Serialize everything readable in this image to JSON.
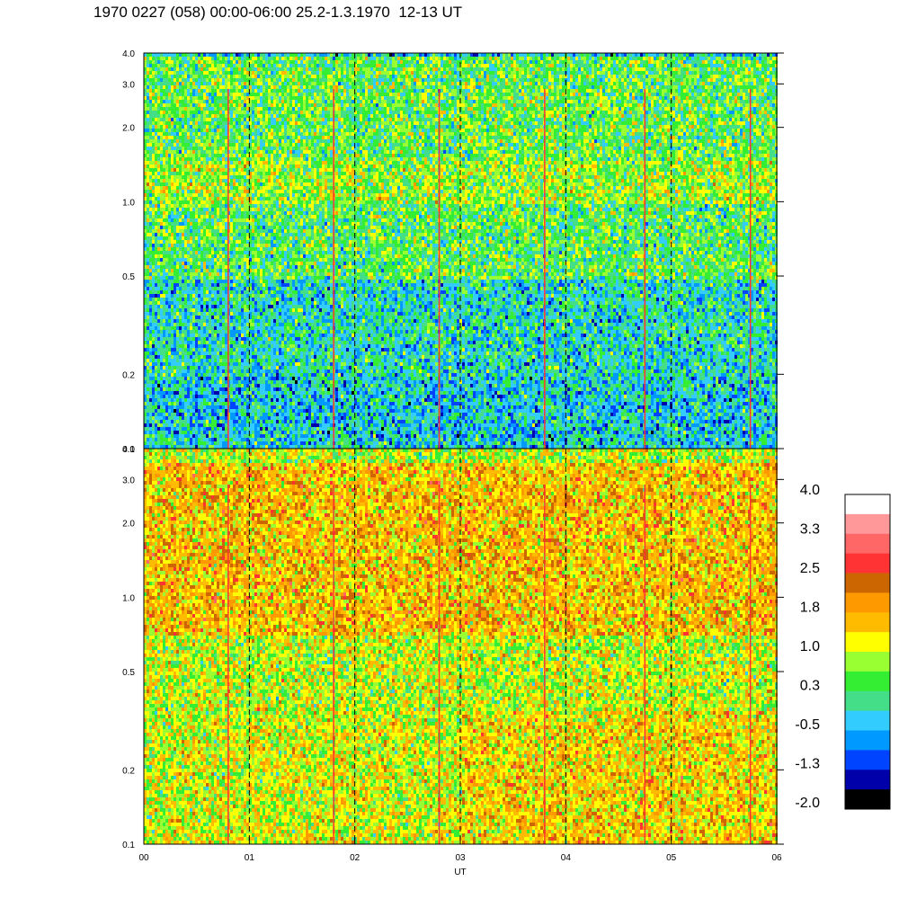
{
  "title": "1970 0227 (058) 00:00-06:00 25.2-1.3.1970  12-13 UT",
  "chart_data": {
    "type": "heatmap",
    "xlabel": "UT",
    "x_ticks": [
      "00",
      "01",
      "02",
      "03",
      "04",
      "05",
      "06"
    ],
    "xlim": [
      0,
      6
    ],
    "dashed_lines_at_hours": [
      1,
      2,
      3,
      4,
      5
    ],
    "y_scale": "log",
    "panels": [
      {
        "name": "upper",
        "ylim": [
          0.1,
          4.0
        ],
        "y_ticks": [
          {
            "value": 0.1,
            "label": "0.1"
          },
          {
            "value": 0.2,
            "label": "0.2"
          },
          {
            "value": 0.5,
            "label": "0.5"
          },
          {
            "value": 1.0,
            "label": "1.0"
          },
          {
            "value": 2.0,
            "label": "2.0"
          },
          {
            "value": 3.0,
            "label": "3.0"
          },
          {
            "value": 4.0,
            "label": "4.0"
          }
        ],
        "dominant_levels_by_frequency": [
          {
            "range": [
              0.1,
              0.2
            ],
            "level": -0.3
          },
          {
            "range": [
              0.2,
              0.5
            ],
            "level": -0.1
          },
          {
            "range": [
              0.5,
              1.0
            ],
            "level": 0.4
          },
          {
            "range": [
              1.0,
              1.5
            ],
            "level": 0.8
          },
          {
            "range": [
              1.5,
              4.0
            ],
            "level": 0.5
          }
        ]
      },
      {
        "name": "lower",
        "ylim": [
          0.1,
          4.0
        ],
        "y_ticks": [
          {
            "value": 0.1,
            "label": "0.1"
          },
          {
            "value": 0.2,
            "label": "0.2"
          },
          {
            "value": 0.5,
            "label": "0.5"
          },
          {
            "value": 1.0,
            "label": "1.0"
          },
          {
            "value": 2.0,
            "label": "2.0"
          },
          {
            "value": 3.0,
            "label": "3.0"
          },
          {
            "value": 4.0,
            "label": "4.0"
          }
        ],
        "dominant_levels_by_frequency": [
          {
            "range": [
              0.1,
              0.3
            ],
            "level": 1.1
          },
          {
            "range": [
              0.3,
              0.7
            ],
            "level": 1.0
          },
          {
            "range": [
              0.7,
              3.5
            ],
            "level": 1.6
          },
          {
            "range": [
              3.5,
              4.0
            ],
            "level": 0.9
          }
        ]
      }
    ],
    "spikes_at_hours": [
      0.8,
      1.8,
      2.8,
      3.8,
      4.75,
      5.75
    ],
    "colorbar": {
      "min": -2.0,
      "max": 4.0,
      "tick_labels": [
        "4.0",
        "3.3",
        "2.5",
        "1.8",
        "1.0",
        "0.3",
        "-0.5",
        "-1.3",
        "-2.0"
      ],
      "colors_top_to_bottom": [
        "#ffffff",
        "#ff9999",
        "#ff6666",
        "#ff3333",
        "#cc6600",
        "#ff9900",
        "#ffbb00",
        "#ffff00",
        "#99ff33",
        "#33ee33",
        "#44dd88",
        "#33ccff",
        "#0099ff",
        "#0044ff",
        "#0000aa",
        "#000000"
      ]
    }
  }
}
